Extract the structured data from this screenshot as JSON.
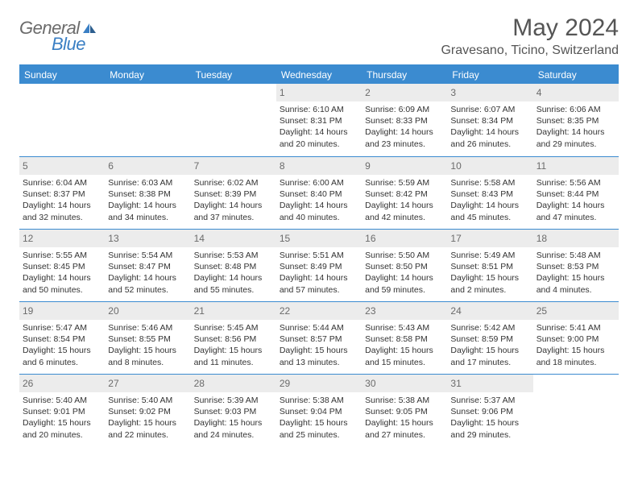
{
  "header": {
    "logo_general": "General",
    "logo_blue": "Blue",
    "month_title": "May 2024",
    "location": "Gravesano, Ticino, Switzerland"
  },
  "day_names": [
    "Sunday",
    "Monday",
    "Tuesday",
    "Wednesday",
    "Thursday",
    "Friday",
    "Saturday"
  ],
  "colors": {
    "header_bg": "#3b8bd0",
    "daynum_bg": "#ececec",
    "logo_gray": "#6b6b6b",
    "logo_blue": "#3a7fc4",
    "title_gray": "#555555"
  },
  "days": [
    {
      "n": "",
      "sunrise": "",
      "sunset": "",
      "daylight1": "",
      "daylight2": ""
    },
    {
      "n": "",
      "sunrise": "",
      "sunset": "",
      "daylight1": "",
      "daylight2": ""
    },
    {
      "n": "",
      "sunrise": "",
      "sunset": "",
      "daylight1": "",
      "daylight2": ""
    },
    {
      "n": "1",
      "sunrise": "Sunrise: 6:10 AM",
      "sunset": "Sunset: 8:31 PM",
      "daylight1": "Daylight: 14 hours",
      "daylight2": "and 20 minutes."
    },
    {
      "n": "2",
      "sunrise": "Sunrise: 6:09 AM",
      "sunset": "Sunset: 8:33 PM",
      "daylight1": "Daylight: 14 hours",
      "daylight2": "and 23 minutes."
    },
    {
      "n": "3",
      "sunrise": "Sunrise: 6:07 AM",
      "sunset": "Sunset: 8:34 PM",
      "daylight1": "Daylight: 14 hours",
      "daylight2": "and 26 minutes."
    },
    {
      "n": "4",
      "sunrise": "Sunrise: 6:06 AM",
      "sunset": "Sunset: 8:35 PM",
      "daylight1": "Daylight: 14 hours",
      "daylight2": "and 29 minutes."
    },
    {
      "n": "5",
      "sunrise": "Sunrise: 6:04 AM",
      "sunset": "Sunset: 8:37 PM",
      "daylight1": "Daylight: 14 hours",
      "daylight2": "and 32 minutes."
    },
    {
      "n": "6",
      "sunrise": "Sunrise: 6:03 AM",
      "sunset": "Sunset: 8:38 PM",
      "daylight1": "Daylight: 14 hours",
      "daylight2": "and 34 minutes."
    },
    {
      "n": "7",
      "sunrise": "Sunrise: 6:02 AM",
      "sunset": "Sunset: 8:39 PM",
      "daylight1": "Daylight: 14 hours",
      "daylight2": "and 37 minutes."
    },
    {
      "n": "8",
      "sunrise": "Sunrise: 6:00 AM",
      "sunset": "Sunset: 8:40 PM",
      "daylight1": "Daylight: 14 hours",
      "daylight2": "and 40 minutes."
    },
    {
      "n": "9",
      "sunrise": "Sunrise: 5:59 AM",
      "sunset": "Sunset: 8:42 PM",
      "daylight1": "Daylight: 14 hours",
      "daylight2": "and 42 minutes."
    },
    {
      "n": "10",
      "sunrise": "Sunrise: 5:58 AM",
      "sunset": "Sunset: 8:43 PM",
      "daylight1": "Daylight: 14 hours",
      "daylight2": "and 45 minutes."
    },
    {
      "n": "11",
      "sunrise": "Sunrise: 5:56 AM",
      "sunset": "Sunset: 8:44 PM",
      "daylight1": "Daylight: 14 hours",
      "daylight2": "and 47 minutes."
    },
    {
      "n": "12",
      "sunrise": "Sunrise: 5:55 AM",
      "sunset": "Sunset: 8:45 PM",
      "daylight1": "Daylight: 14 hours",
      "daylight2": "and 50 minutes."
    },
    {
      "n": "13",
      "sunrise": "Sunrise: 5:54 AM",
      "sunset": "Sunset: 8:47 PM",
      "daylight1": "Daylight: 14 hours",
      "daylight2": "and 52 minutes."
    },
    {
      "n": "14",
      "sunrise": "Sunrise: 5:53 AM",
      "sunset": "Sunset: 8:48 PM",
      "daylight1": "Daylight: 14 hours",
      "daylight2": "and 55 minutes."
    },
    {
      "n": "15",
      "sunrise": "Sunrise: 5:51 AM",
      "sunset": "Sunset: 8:49 PM",
      "daylight1": "Daylight: 14 hours",
      "daylight2": "and 57 minutes."
    },
    {
      "n": "16",
      "sunrise": "Sunrise: 5:50 AM",
      "sunset": "Sunset: 8:50 PM",
      "daylight1": "Daylight: 14 hours",
      "daylight2": "and 59 minutes."
    },
    {
      "n": "17",
      "sunrise": "Sunrise: 5:49 AM",
      "sunset": "Sunset: 8:51 PM",
      "daylight1": "Daylight: 15 hours",
      "daylight2": "and 2 minutes."
    },
    {
      "n": "18",
      "sunrise": "Sunrise: 5:48 AM",
      "sunset": "Sunset: 8:53 PM",
      "daylight1": "Daylight: 15 hours",
      "daylight2": "and 4 minutes."
    },
    {
      "n": "19",
      "sunrise": "Sunrise: 5:47 AM",
      "sunset": "Sunset: 8:54 PM",
      "daylight1": "Daylight: 15 hours",
      "daylight2": "and 6 minutes."
    },
    {
      "n": "20",
      "sunrise": "Sunrise: 5:46 AM",
      "sunset": "Sunset: 8:55 PM",
      "daylight1": "Daylight: 15 hours",
      "daylight2": "and 8 minutes."
    },
    {
      "n": "21",
      "sunrise": "Sunrise: 5:45 AM",
      "sunset": "Sunset: 8:56 PM",
      "daylight1": "Daylight: 15 hours",
      "daylight2": "and 11 minutes."
    },
    {
      "n": "22",
      "sunrise": "Sunrise: 5:44 AM",
      "sunset": "Sunset: 8:57 PM",
      "daylight1": "Daylight: 15 hours",
      "daylight2": "and 13 minutes."
    },
    {
      "n": "23",
      "sunrise": "Sunrise: 5:43 AM",
      "sunset": "Sunset: 8:58 PM",
      "daylight1": "Daylight: 15 hours",
      "daylight2": "and 15 minutes."
    },
    {
      "n": "24",
      "sunrise": "Sunrise: 5:42 AM",
      "sunset": "Sunset: 8:59 PM",
      "daylight1": "Daylight: 15 hours",
      "daylight2": "and 17 minutes."
    },
    {
      "n": "25",
      "sunrise": "Sunrise: 5:41 AM",
      "sunset": "Sunset: 9:00 PM",
      "daylight1": "Daylight: 15 hours",
      "daylight2": "and 18 minutes."
    },
    {
      "n": "26",
      "sunrise": "Sunrise: 5:40 AM",
      "sunset": "Sunset: 9:01 PM",
      "daylight1": "Daylight: 15 hours",
      "daylight2": "and 20 minutes."
    },
    {
      "n": "27",
      "sunrise": "Sunrise: 5:40 AM",
      "sunset": "Sunset: 9:02 PM",
      "daylight1": "Daylight: 15 hours",
      "daylight2": "and 22 minutes."
    },
    {
      "n": "28",
      "sunrise": "Sunrise: 5:39 AM",
      "sunset": "Sunset: 9:03 PM",
      "daylight1": "Daylight: 15 hours",
      "daylight2": "and 24 minutes."
    },
    {
      "n": "29",
      "sunrise": "Sunrise: 5:38 AM",
      "sunset": "Sunset: 9:04 PM",
      "daylight1": "Daylight: 15 hours",
      "daylight2": "and 25 minutes."
    },
    {
      "n": "30",
      "sunrise": "Sunrise: 5:38 AM",
      "sunset": "Sunset: 9:05 PM",
      "daylight1": "Daylight: 15 hours",
      "daylight2": "and 27 minutes."
    },
    {
      "n": "31",
      "sunrise": "Sunrise: 5:37 AM",
      "sunset": "Sunset: 9:06 PM",
      "daylight1": "Daylight: 15 hours",
      "daylight2": "and 29 minutes."
    },
    {
      "n": "",
      "sunrise": "",
      "sunset": "",
      "daylight1": "",
      "daylight2": ""
    }
  ]
}
